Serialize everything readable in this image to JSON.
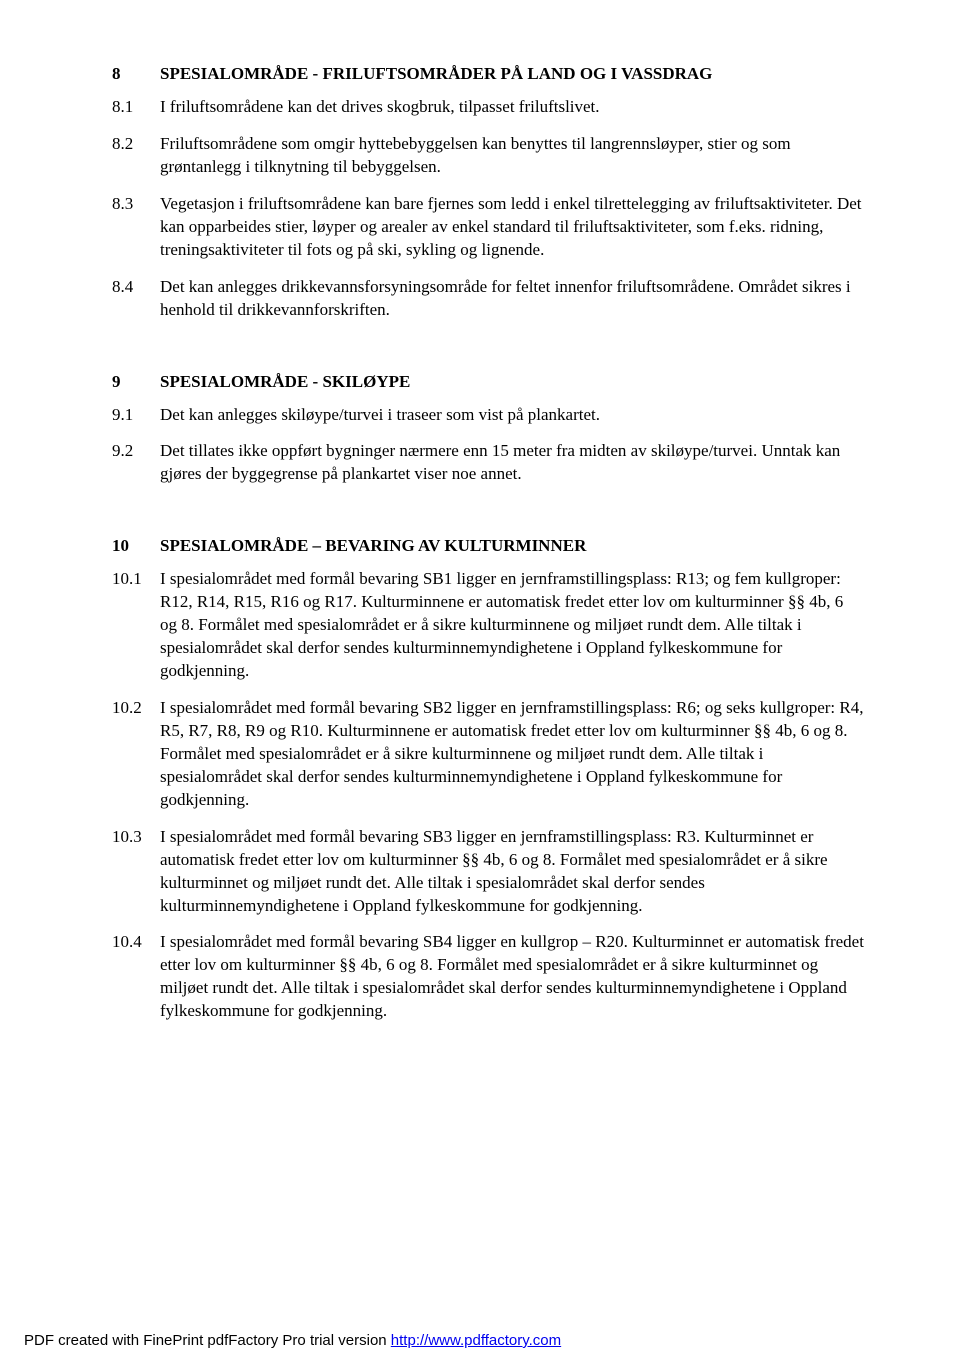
{
  "section8": {
    "num": "8",
    "title": "SPESIALOMRÅDE  - FRILUFTSOMRÅDER PÅ LAND OG I VASSDRAG",
    "c1_num": "8.1",
    "c1_txt": "I friluftsområdene kan det drives skogbruk, tilpasset friluftslivet.",
    "c2_num": "8.2",
    "c2_txt": "Friluftsområdene som omgir hyttebebyggelsen kan benyttes til langrennsløyper, stier og som grøntanlegg i tilknytning til bebyggelsen.",
    "c3_num": "8.3",
    "c3_txt": "Vegetasjon i friluftsområdene kan bare fjernes som ledd i enkel tilrettelegging av friluftsaktiviteter. Det kan opparbeides stier, løyper og arealer av enkel standard til friluftsaktiviteter, som f.eks. ridning, treningsaktiviteter til fots og på ski, sykling og lignende.",
    "c4_num": "8.4",
    "c4_txt": "Det kan anlegges drikkevannsforsyningsområde for feltet innenfor friluftsområdene. Området sikres i henhold til drikkevannforskriften."
  },
  "section9": {
    "num": "9",
    "title": "SPESIALOMRÅDE - SKILØYPE",
    "c1_num": "9.1",
    "c1_txt": "Det kan anlegges skiløype/turvei i traseer som vist på plankartet.",
    "c2_num": "9.2",
    "c2_txt": "Det tillates ikke oppført bygninger nærmere enn 15 meter fra midten av skiløype/turvei. Unntak kan gjøres der byggegrense på plankartet viser noe annet."
  },
  "section10": {
    "num": "10",
    "title": "SPESIALOMRÅDE – BEVARING AV KULTURMINNER",
    "c1_num": "10.1",
    "c1_txt": "I spesialområdet med formål bevaring SB1 ligger en jernframstillingsplass: R13; og fem kullgroper: R12, R14, R15, R16 og R17. Kulturminnene er automatisk fredet etter lov om kulturminner §§ 4b, 6 og 8. Formålet med spesialområdet er å sikre kulturminnene og miljøet rundt dem. Alle tiltak i spesialområdet skal derfor sendes kulturminnemyndighetene i Oppland fylkeskommune for godkjenning.",
    "c2_num": "10.2",
    "c2_txt": "I spesialområdet med formål bevaring SB2 ligger en jernframstillingsplass: R6; og seks kullgroper: R4, R5, R7, R8, R9 og R10. Kulturminnene er automatisk fredet etter lov om kulturminner §§ 4b, 6 og 8. Formålet med spesialområdet er å sikre kulturminnene og miljøet rundt dem. Alle tiltak i spesialområdet skal derfor sendes kulturminnemyndighetene i Oppland fylkeskommune for godkjenning.",
    "c3_num": "10.3",
    "c3_txt": "I spesialområdet med formål bevaring SB3 ligger en jernframstillingsplass: R3. Kulturminnet er automatisk fredet etter lov om kulturminner §§ 4b, 6 og 8. Formålet med spesialområdet er å sikre kulturminnet og miljøet rundt det. Alle tiltak i spesialområdet skal derfor sendes kulturminnemyndighetene i Oppland fylkeskommune for godkjenning.",
    "c4_num": "10.4",
    "c4_txt": "I spesialområdet med formål bevaring SB4 ligger en kullgrop – R20. Kulturminnet er automatisk fredet etter lov om kulturminner §§ 4b, 6 og 8. Formålet med spesialområdet er å sikre kulturminnet og miljøet rundt det. Alle tiltak i spesialområdet skal derfor sendes kulturminnemyndighetene i Oppland fylkeskommune for godkjenning."
  },
  "footer": {
    "prefix": "PDF created with FinePrint pdfFactory Pro trial version ",
    "link_text": "http://www.pdffactory.com"
  }
}
